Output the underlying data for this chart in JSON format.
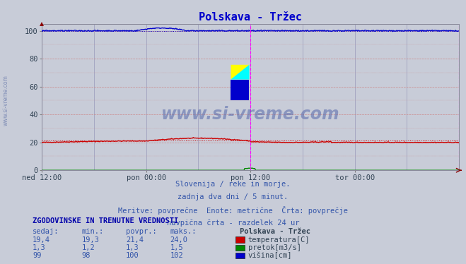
{
  "title": "Polskava - Tržec",
  "title_color": "#0000cc",
  "bg_color": "#c8ccd8",
  "plot_bg_color": "#c8ccd8",
  "grid_color_v": "#9999bb",
  "grid_color_h": "#cc8888",
  "xlim": [
    0,
    576
  ],
  "ylim": [
    0,
    105
  ],
  "yticks": [
    0,
    20,
    40,
    60,
    80,
    100
  ],
  "xtick_labels": [
    "ned 12:00",
    "pon 00:00",
    "pon 12:00",
    "tor 00:00"
  ],
  "xtick_positions": [
    0,
    144,
    288,
    432
  ],
  "vline_color": "#ff00ff",
  "temp_color": "#cc0000",
  "pretok_color": "#008800",
  "visina_color": "#0000cc",
  "watermark_color": "#5566aa",
  "watermark_text": "www.si-vreme.com",
  "footer_lines": [
    "Slovenija / reke in morje.",
    "zadnja dva dni / 5 minut.",
    "Meritve: povprečne  Enote: metrične  Črta: povprečje",
    "navpična črta - razdelek 24 ur"
  ],
  "legend_title": "Polskava - Tržec",
  "legend_entries": [
    {
      "label": "temperatura[C]",
      "color": "#cc0000"
    },
    {
      "label": "pretok[m3/s]",
      "color": "#008800"
    },
    {
      "label": "višina[cm]",
      "color": "#0000cc"
    }
  ],
  "table_header": "ZGODOVINSKE IN TRENUTNE VREDNOSTI",
  "table_cols": [
    "sedaj:",
    "min.:",
    "povpr.:",
    "maks.:"
  ],
  "table_data": [
    [
      "19,4",
      "19,3",
      "21,4",
      "24,0"
    ],
    [
      "1,3",
      "1,2",
      "1,3",
      "1,5"
    ],
    [
      "99",
      "98",
      "100",
      "102"
    ]
  ]
}
